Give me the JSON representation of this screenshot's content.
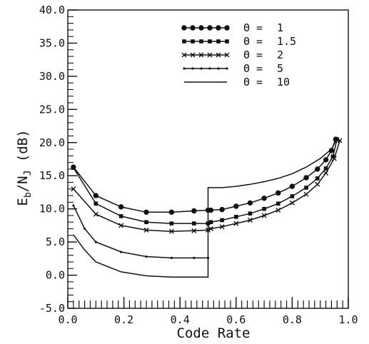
{
  "chart_data": {
    "type": "line",
    "xlabel": "Code Rate",
    "ylabel": "Eb/NJ (dB)",
    "ylabel_parts": {
      "main": "E",
      "sub1": "b",
      "mid": "/N",
      "sub2": "J",
      "unit": " (dB)"
    },
    "xlim": [
      0.0,
      1.0
    ],
    "ylim": [
      -5.0,
      40.0
    ],
    "x_ticks": [
      "0.0",
      "0.2",
      "0.4",
      "0.6",
      "0.8",
      "1.0"
    ],
    "y_ticks": [
      "-5.0",
      "0.0",
      "5.0",
      "10.0",
      "15.0",
      "20.0",
      "25.0",
      "30.0",
      "35.0",
      "40.0"
    ],
    "grid": false,
    "legend_position": "top-right",
    "theta_symbol": "Θ",
    "series": [
      {
        "name": "1",
        "marker": "circle",
        "x": [
          0.02,
          0.1,
          0.19,
          0.28,
          0.37,
          0.45,
          0.5,
          0.51,
          0.55,
          0.6,
          0.65,
          0.7,
          0.75,
          0.8,
          0.85,
          0.89,
          0.92,
          0.94,
          0.955
        ],
        "y": [
          16.3,
          12.0,
          10.3,
          9.5,
          9.5,
          9.7,
          9.8,
          9.8,
          9.9,
          10.4,
          10.9,
          11.6,
          12.4,
          13.4,
          14.7,
          16.0,
          17.4,
          18.8,
          20.5
        ]
      },
      {
        "name": "1.5",
        "marker": "square",
        "x": [
          0.02,
          0.1,
          0.19,
          0.28,
          0.37,
          0.45,
          0.5,
          0.51,
          0.55,
          0.6,
          0.65,
          0.7,
          0.75,
          0.8,
          0.85,
          0.89,
          0.92,
          0.945,
          0.96
        ],
        "y": [
          16.2,
          10.8,
          8.9,
          8.0,
          7.8,
          7.8,
          7.8,
          8.0,
          8.3,
          8.8,
          9.3,
          10.0,
          10.8,
          11.9,
          13.2,
          14.6,
          16.1,
          17.9,
          20.5
        ]
      },
      {
        "name": "2",
        "marker": "cross",
        "x": [
          0.02,
          0.1,
          0.19,
          0.28,
          0.37,
          0.45,
          0.5,
          0.51,
          0.55,
          0.6,
          0.65,
          0.7,
          0.75,
          0.8,
          0.85,
          0.89,
          0.92,
          0.95,
          0.97
        ],
        "y": [
          13.0,
          9.2,
          7.5,
          6.8,
          6.6,
          6.7,
          6.8,
          7.0,
          7.3,
          7.8,
          8.3,
          9.0,
          9.8,
          10.9,
          12.2,
          13.7,
          15.4,
          17.6,
          20.3
        ]
      },
      {
        "name": "5",
        "marker": "dot",
        "x": [
          0.02,
          0.06,
          0.1,
          0.19,
          0.28,
          0.37,
          0.45,
          0.5
        ],
        "y": [
          10.5,
          7.0,
          5.0,
          3.5,
          2.8,
          2.6,
          2.6,
          2.6
        ]
      },
      {
        "name": "10",
        "marker": "none",
        "x": [
          0.02,
          0.06,
          0.1,
          0.19,
          0.28,
          0.37,
          0.45,
          0.5,
          0.5,
          0.55,
          0.6,
          0.65,
          0.7,
          0.75,
          0.8,
          0.85,
          0.9,
          0.94,
          0.96
        ],
        "y": [
          6.1,
          3.8,
          2.0,
          0.5,
          -0.1,
          -0.3,
          -0.3,
          -0.3,
          13.2,
          13.2,
          13.4,
          13.7,
          14.1,
          14.6,
          15.3,
          16.3,
          17.6,
          19.0,
          20.6
        ]
      }
    ]
  }
}
